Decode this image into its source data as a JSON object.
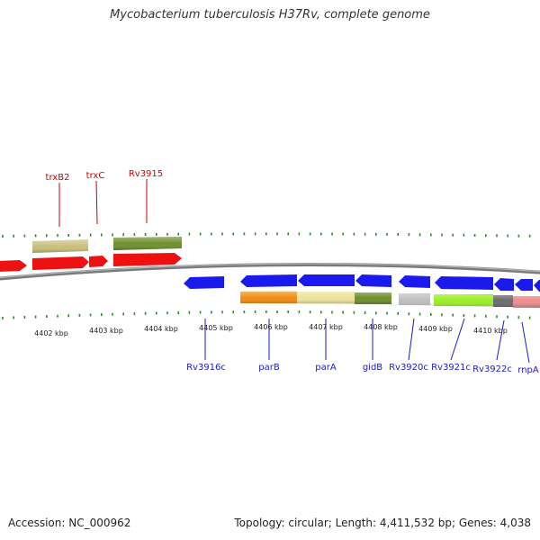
{
  "title": "Mycobacterium tuberculosis H37Rv, complete genome",
  "accession_text": "Accession: NC_000962",
  "summary_text": "Topology: circular; Length: 4,411,532 bp; Genes: 4,038",
  "colors": {
    "forward_gene": "#ee1111",
    "reverse_gene": "#1a1aee",
    "backbone": "#8a8a8a",
    "tick": "#2a8a2a",
    "label_forward": "#cc0000",
    "label_reverse": "#1a1acc"
  },
  "kbp_ticks": [
    "4402 kbp",
    "4403 kbp",
    "4404 kbp",
    "4405 kbp",
    "4406 kbp",
    "4407 kbp",
    "4408 kbp",
    "4409 kbp",
    "4410 kbp"
  ],
  "forward_labels": [
    "trxB2",
    "trxC",
    "Rv3915"
  ],
  "reverse_labels": [
    "Rv3916c",
    "parB",
    "parA",
    "gidB",
    "Rv3920c",
    "Rv3921c",
    "Rv3922c",
    "rnpA"
  ]
}
